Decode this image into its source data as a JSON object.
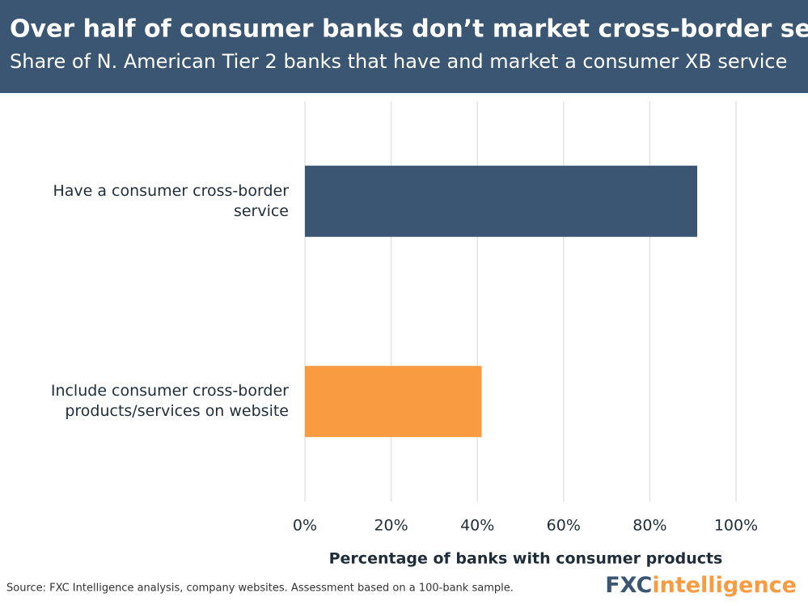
{
  "chart_data": {
    "type": "bar",
    "orientation": "horizontal",
    "title": "Over half of consumer banks don’t market cross-border service",
    "subtitle": "Share of N. American Tier 2 banks that have and market a consumer XB service",
    "categories": [
      "Have a consumer cross-border service",
      "Include consumer cross-border products/services on website"
    ],
    "values": [
      91,
      41
    ],
    "colors": [
      "#3a5673",
      "#f99b40"
    ],
    "xlim": [
      0,
      100
    ],
    "xticks": [
      {
        "value": 0,
        "label": "0%"
      },
      {
        "value": 20,
        "label": "20%"
      },
      {
        "value": 40,
        "label": "40%"
      },
      {
        "value": 60,
        "label": "60%"
      },
      {
        "value": 80,
        "label": "80%"
      },
      {
        "value": 100,
        "label": "100%"
      }
    ],
    "x_label": "Percentage of banks with consumer products",
    "grid": true,
    "source": "Source: FXC Intelligence analysis, company websites. Assessment based on a 100-bank sample.",
    "logo": {
      "part1": "FXC",
      "part2": "intelligence"
    }
  }
}
